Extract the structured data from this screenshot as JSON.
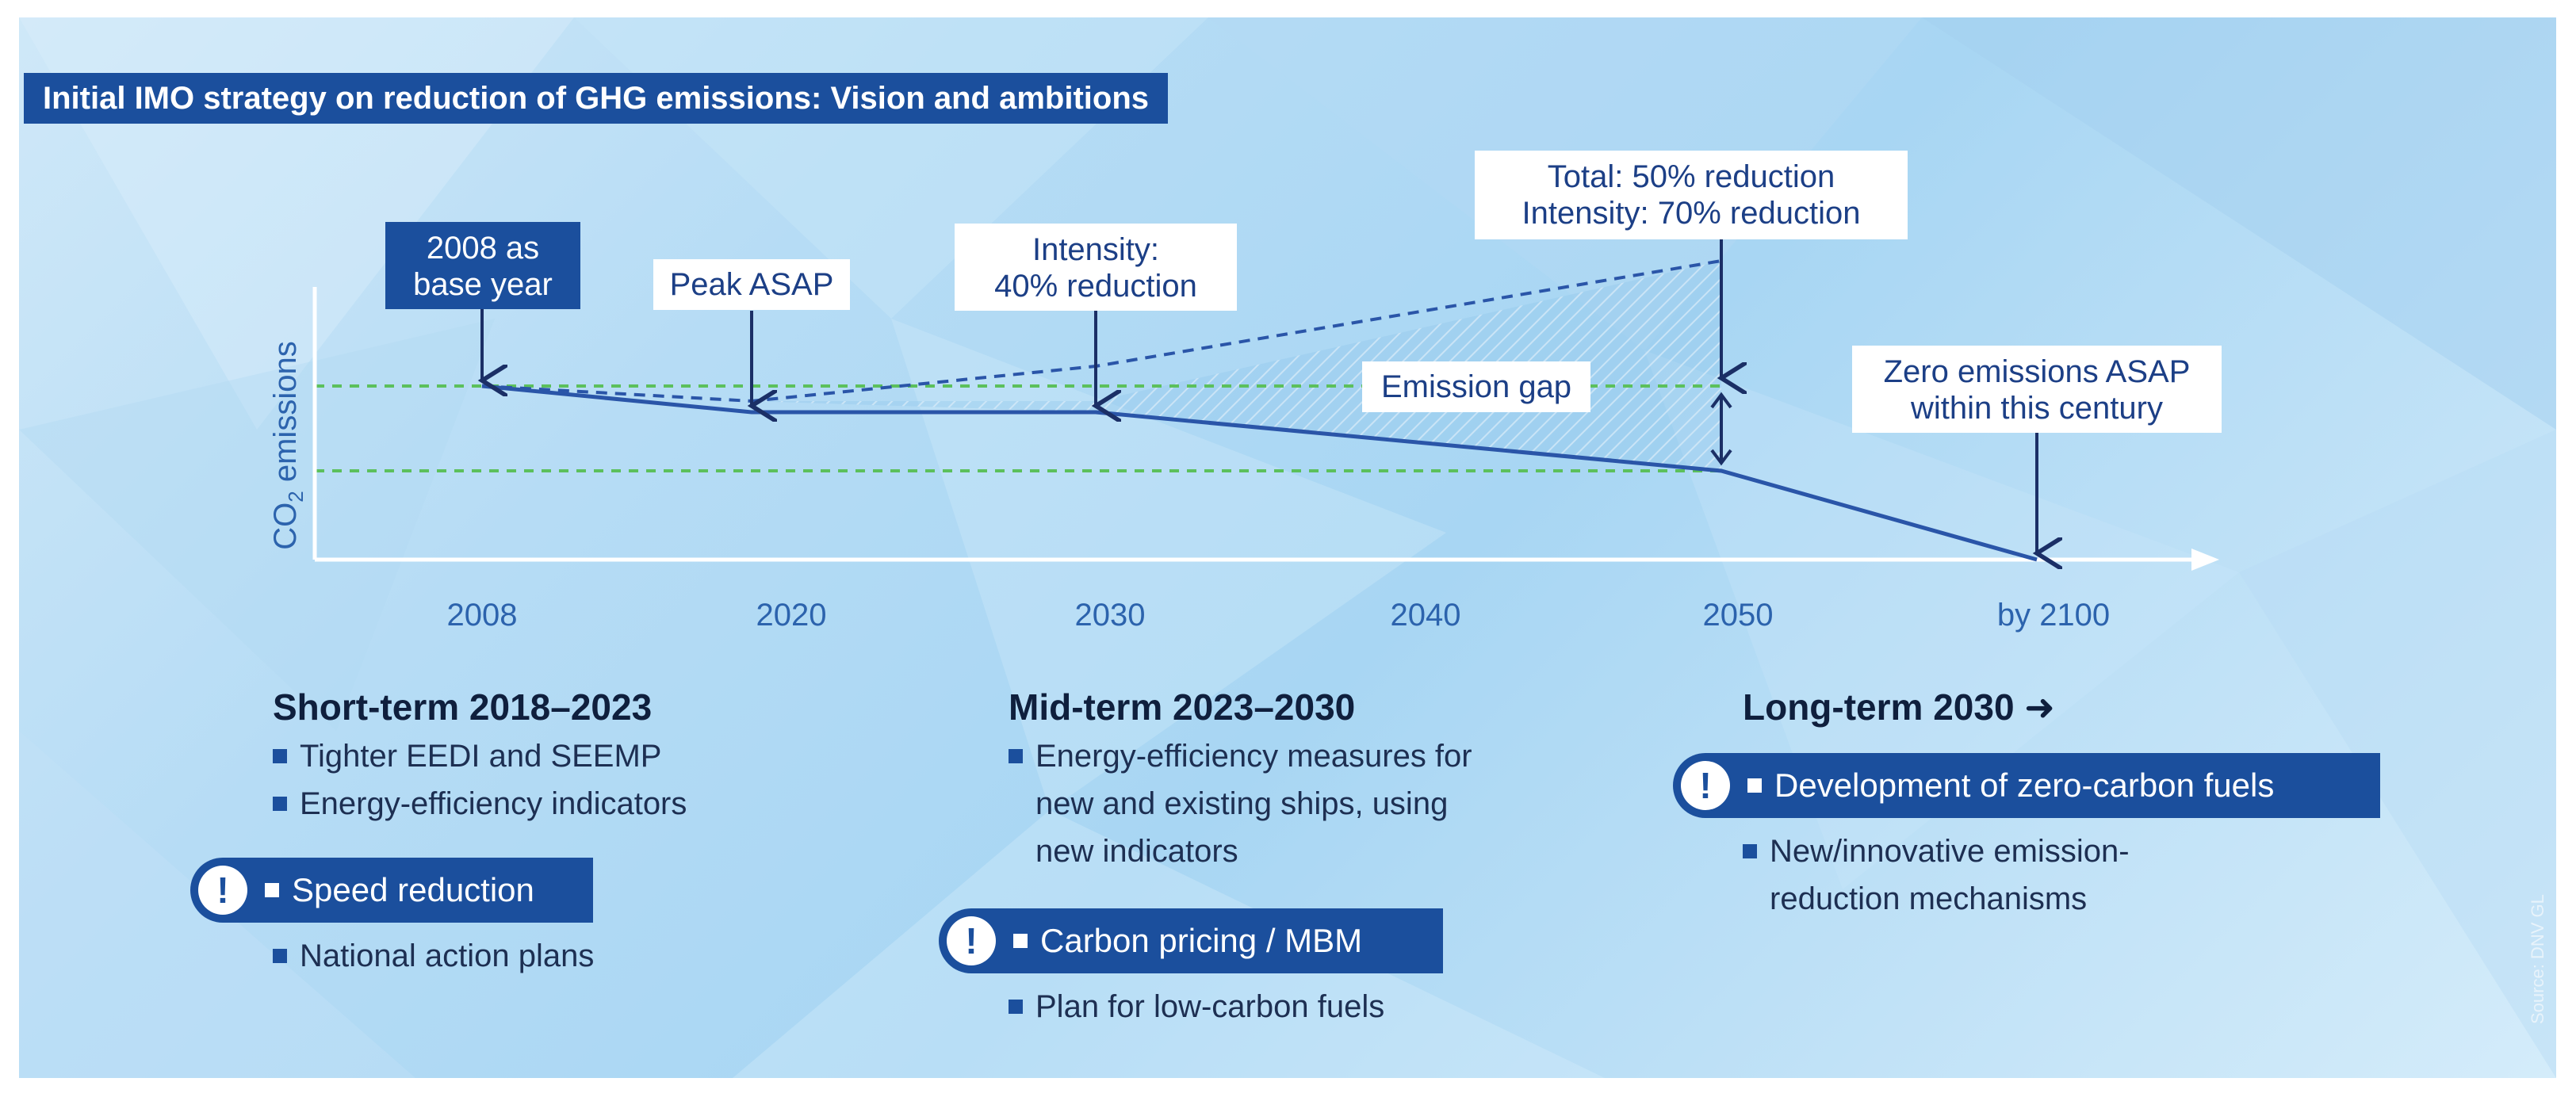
{
  "title": "Initial IMO strategy on reduction of GHG emissions: Vision and ambitions",
  "y_axis_label_main": "CO",
  "y_axis_label_sub": "2",
  "y_axis_label_rest": " emissions",
  "x_ticks": [
    "2008",
    "2020",
    "2030",
    "2040",
    "2050",
    "by 2100"
  ],
  "callouts": {
    "base_year": "2008 as\nbase year",
    "peak": "Peak ASAP",
    "intensity_2030": "Intensity:\n40% reduction",
    "target_2050": "Total: 50% reduction\nIntensity: 70% reduction",
    "emission_gap": "Emission gap",
    "zero": "Zero emissions ASAP\nwithin this century"
  },
  "sections": {
    "short": {
      "heading": "Short-term 2018–2023",
      "items": [
        "Tighter EEDI and SEEMP",
        "Energy-efficiency indicators"
      ],
      "highlight": "Speed reduction",
      "items_after": [
        "National action plans"
      ]
    },
    "mid": {
      "heading": "Mid-term 2023–2030",
      "items": [
        "Energy-efficiency measures for\nnew and existing ships, using\nnew indicators"
      ],
      "highlight": "Carbon pricing / MBM",
      "items_after": [
        "Plan for low-carbon fuels"
      ]
    },
    "long": {
      "heading": "Long-term 2030 ➜",
      "highlight": "Development of zero-carbon fuels",
      "items_after": [
        "New/innovative emission-\nreduction mechanisms"
      ]
    }
  },
  "exclamation": "!",
  "source": "Source: DNV GL",
  "colors": {
    "navy": "#1b4f9d",
    "line": "#2a55a8",
    "dashed_green": "#5cc05c",
    "axis": "#ffffff"
  }
}
